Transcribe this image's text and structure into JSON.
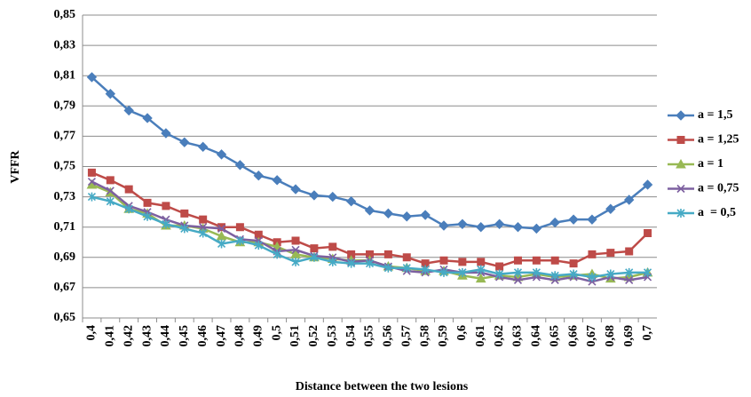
{
  "chart_data": {
    "type": "line",
    "y_label": "VFFR",
    "x_label": "Distance between the two lesions",
    "categories": [
      "0,4",
      "0,41",
      "0,42",
      "0,43",
      "0,44",
      "0,45",
      "0,46",
      "0,47",
      "0,48",
      "0,49",
      "0,5",
      "0,51",
      "0,52",
      "0,53",
      "0,54",
      "0,55",
      "0,56",
      "0,57",
      "0,58",
      "0,59",
      "0,6",
      "0,61",
      "0,62",
      "0,63",
      "0,64",
      "0,65",
      "0,66",
      "0,67",
      "0,68",
      "0,69",
      "0,7"
    ],
    "series": [
      {
        "name": "a = 1,5",
        "color": "#4a7ebb",
        "marker": "diamond",
        "values": [
          0.809,
          0.798,
          0.787,
          0.782,
          0.772,
          0.766,
          0.763,
          0.758,
          0.751,
          0.744,
          0.741,
          0.735,
          0.731,
          0.73,
          0.727,
          0.721,
          0.719,
          0.717,
          0.718,
          0.711,
          0.712,
          0.71,
          0.712,
          0.71,
          0.709,
          0.713,
          0.715,
          0.715,
          0.722,
          0.728,
          0.738
        ]
      },
      {
        "name": "a = 1,25",
        "color": "#be4b48",
        "marker": "square",
        "values": [
          0.746,
          0.741,
          0.735,
          0.726,
          0.724,
          0.719,
          0.715,
          0.71,
          0.71,
          0.705,
          0.7,
          0.701,
          0.696,
          0.697,
          0.692,
          0.692,
          0.692,
          0.69,
          0.686,
          0.688,
          0.687,
          0.687,
          0.684,
          0.688,
          0.688,
          0.688,
          0.686,
          0.692,
          0.693,
          0.694,
          0.706
        ]
      },
      {
        "name": "a = 1",
        "color": "#98b954",
        "marker": "triangle",
        "values": [
          0.738,
          0.733,
          0.722,
          0.719,
          0.711,
          0.711,
          0.709,
          0.704,
          0.7,
          0.7,
          0.697,
          0.692,
          0.69,
          0.689,
          0.688,
          0.688,
          0.684,
          0.683,
          0.681,
          0.681,
          0.678,
          0.676,
          0.678,
          0.677,
          0.679,
          0.677,
          0.678,
          0.679,
          0.676,
          0.677,
          0.68
        ]
      },
      {
        "name": "a = 0,75",
        "color": "#7d60a0",
        "marker": "x",
        "values": [
          0.74,
          0.734,
          0.724,
          0.72,
          0.715,
          0.711,
          0.71,
          0.709,
          0.702,
          0.701,
          0.694,
          0.695,
          0.691,
          0.69,
          0.687,
          0.688,
          0.684,
          0.681,
          0.68,
          0.682,
          0.68,
          0.68,
          0.677,
          0.675,
          0.677,
          0.675,
          0.677,
          0.674,
          0.677,
          0.675,
          0.677
        ]
      },
      {
        "name": "a  = 0,5",
        "color": "#46aac5",
        "marker": "star",
        "values": [
          0.73,
          0.727,
          0.722,
          0.717,
          0.712,
          0.709,
          0.706,
          0.699,
          0.701,
          0.698,
          0.692,
          0.687,
          0.69,
          0.687,
          0.686,
          0.686,
          0.683,
          0.683,
          0.682,
          0.68,
          0.68,
          0.682,
          0.679,
          0.68,
          0.68,
          0.678,
          0.679,
          0.677,
          0.679,
          0.68,
          0.68
        ]
      }
    ],
    "ylim": [
      0.65,
      0.85
    ],
    "yticks": [
      {
        "value": 0.65,
        "label": "0,65"
      },
      {
        "value": 0.67,
        "label": "0,67"
      },
      {
        "value": 0.69,
        "label": "0,69"
      },
      {
        "value": 0.71,
        "label": "0,71"
      },
      {
        "value": 0.73,
        "label": "0,73"
      },
      {
        "value": 0.75,
        "label": "0,75"
      },
      {
        "value": 0.77,
        "label": "0,77"
      },
      {
        "value": 0.79,
        "label": "0,79"
      },
      {
        "value": 0.81,
        "label": "0,81"
      },
      {
        "value": 0.83,
        "label": "0,83"
      },
      {
        "value": 0.85,
        "label": "0,85"
      }
    ],
    "grid": true,
    "legend": "right"
  }
}
